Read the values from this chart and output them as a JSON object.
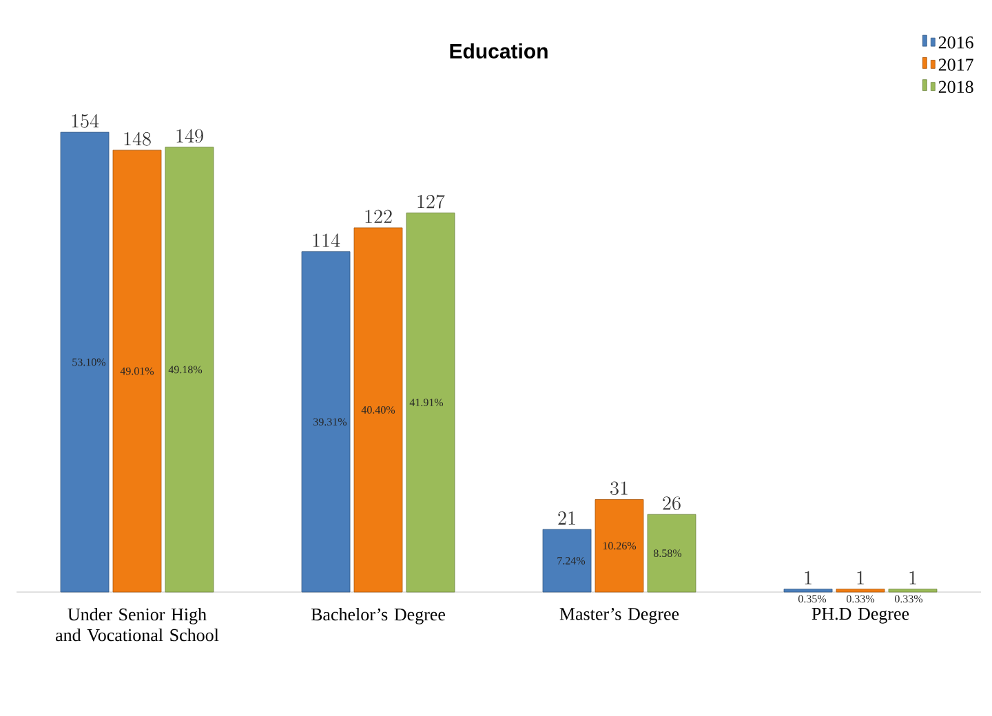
{
  "chart_data": {
    "type": "bar",
    "title": "Education",
    "categories": [
      "Under Senior High and Vocational School",
      "Bachelor’s Degree",
      "Master’s Degree",
      "PH.D Degree"
    ],
    "series": [
      {
        "name": "2016",
        "color": "#4a7ebb",
        "values": [
          154,
          114,
          21,
          1
        ]
      },
      {
        "name": "2017",
        "color": "#f07c12",
        "values": [
          148,
          122,
          31,
          1
        ]
      },
      {
        "name": "2018",
        "color": "#9bbb59",
        "values": [
          149,
          127,
          26,
          1
        ]
      }
    ],
    "annotations": [
      "53.10%",
      "49.01%",
      "49.18%",
      "39.31%",
      "40.40%",
      "41.91%",
      "7.24%",
      "10.26%",
      "8.58%",
      "0.35%",
      "0.33%",
      "0.33%"
    ],
    "data_labels": true,
    "legend": "top right",
    "grid": false
  }
}
